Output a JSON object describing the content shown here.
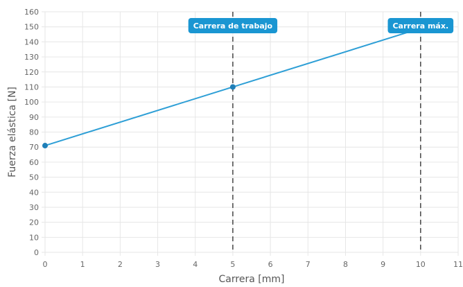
{
  "chart_data": {
    "type": "line",
    "xlabel": "Carrera [mm]",
    "ylabel": "Fuerza elástica [N]",
    "xlim": [
      0,
      11
    ],
    "ylim": [
      0,
      160
    ],
    "x_ticks": [
      0,
      1,
      2,
      3,
      4,
      5,
      6,
      7,
      8,
      9,
      10,
      11
    ],
    "y_ticks": [
      0,
      10,
      20,
      30,
      40,
      50,
      60,
      70,
      80,
      90,
      100,
      110,
      120,
      130,
      140,
      150,
      160
    ],
    "grid": true,
    "series": [
      {
        "color": "#2e9fd6",
        "points": [
          {
            "x": 0,
            "y": 71
          },
          {
            "x": 5,
            "y": 110
          },
          {
            "x": 10,
            "y": 149
          }
        ]
      }
    ],
    "vertical_lines": [
      {
        "x": 5,
        "label": "Carrera de trabajo"
      },
      {
        "x": 10,
        "label": "Carrera máx."
      }
    ],
    "colors": {
      "line": "#2e9fd6",
      "marker": "#1f7fb8",
      "annotation_bg": "#1a96d2",
      "grid": "#e6e6e6",
      "vline": "#444444"
    }
  }
}
